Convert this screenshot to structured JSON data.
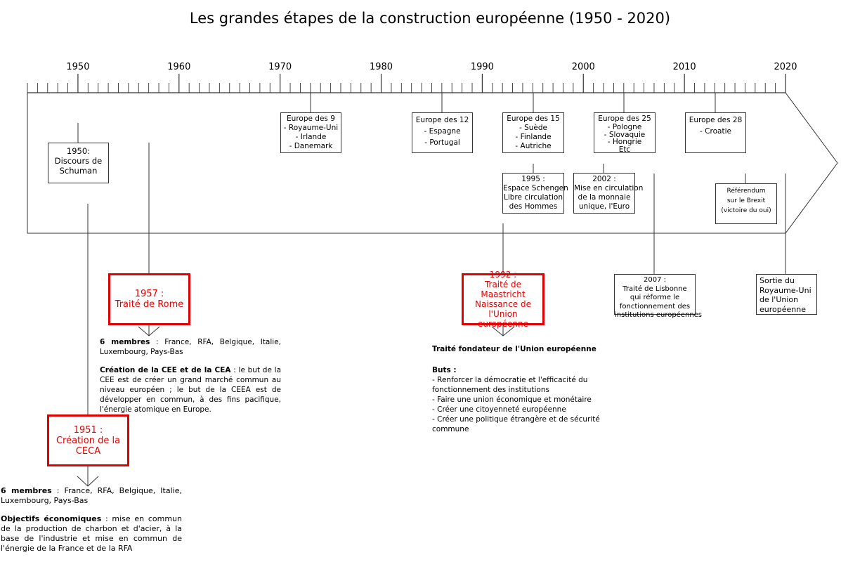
{
  "title": "Les grandes étapes de la construction européenne (1950 - 2020)",
  "years": [
    "1950",
    "1960",
    "1970",
    "1980",
    "1990",
    "2000",
    "2010",
    "2020"
  ],
  "top_boxes": {
    "schuman": [
      "1950:",
      "Discours de",
      "Schuman"
    ],
    "europe9": [
      "Europe des 9",
      "- Royaume-Uni",
      "- Irlande",
      "- Danemark"
    ],
    "europe12": [
      "Europe des 12",
      "- Espagne",
      "- Portugal"
    ],
    "europe15": [
      "Europe des 15",
      "- Suède",
      "- Finlande",
      "- Autriche"
    ],
    "europe25": [
      "Europe des 25",
      "- Pologne",
      "- Slovaquie",
      "- Hongrie",
      "Etc"
    ],
    "europe28": [
      "Europe des 28",
      "- Croatie"
    ],
    "schengen": [
      "1995 :",
      "Espace Schengen",
      "Libre circulation",
      "des Hommes"
    ],
    "euro": [
      "2002 :",
      "Mise en circulation",
      "de la monnaie",
      "unique, l'Euro"
    ],
    "brexit_ref": [
      "Référendum",
      "sur le Brexit",
      "(victoire du oui)"
    ]
  },
  "bottom_boxes": {
    "lisbonne": [
      "2007 :",
      "Traité de Lisbonne",
      "qui réforme le",
      "fonctionnement des",
      "institutions européennes"
    ],
    "sortie": [
      "Sortie du",
      "Royaume-Uni",
      "de l'Union",
      "européenne"
    ]
  },
  "red_boxes": {
    "rome": [
      "1957 :",
      "Traité de Rome"
    ],
    "ceca": [
      "1951 :",
      "Création de la",
      "CECA"
    ],
    "maastricht": [
      "1992 :",
      "Traité de Maastricht",
      "Naissance de",
      "l'Union européenne"
    ]
  },
  "rome_text": {
    "members_label": "6 membres",
    "members_text": " : France, RFA, Belgique, Italie, Luxembourg, Pays-Bas",
    "creation_label": "Création de la CEE et de la CEA",
    "creation_text": " : le but de la CEE est de créer un grand marché commun au niveau européen ; le but de la CEEA est de développer en commun, à des fins pacifique, l'énergie atomique en Europe."
  },
  "ceca_text": {
    "members_label": "6 membres",
    "members_text": " : France, RFA, Belgique, Italie, Luxembourg, Pays-Bas",
    "objectifs_label": "Objectifs économiques",
    "objectifs_text": " : mise en commun de la production de charbon et d'acier, à la base de l'industrie et mise en commun de l'énergie de la France et de la RFA"
  },
  "maastricht_text": {
    "heading": "Traité fondateur de l'Union européenne",
    "buts_label": "Buts :",
    "buts": [
      "- Renforcer la démocratie et l'efficacité du",
      "fonctionnement des institutions",
      "- Faire une union économique et monétaire",
      "- Créer une citoyenneté européenne",
      "- Créer une politique étrangère et de sécurité",
      "commune"
    ]
  }
}
